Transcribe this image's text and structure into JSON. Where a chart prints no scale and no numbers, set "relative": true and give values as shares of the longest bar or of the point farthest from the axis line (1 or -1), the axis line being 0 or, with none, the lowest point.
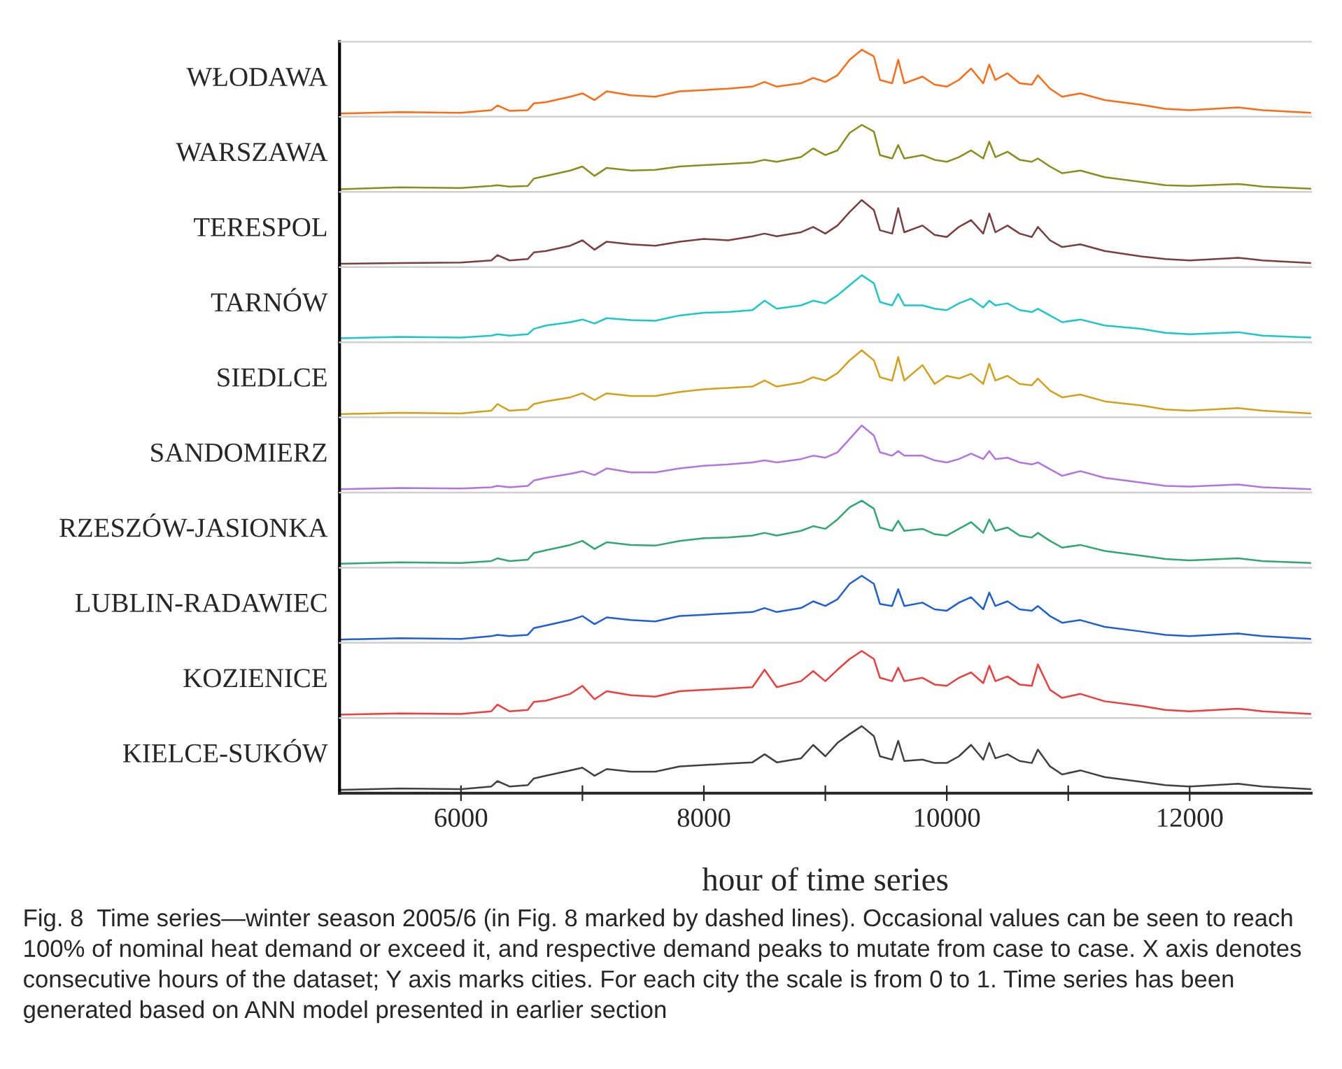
{
  "chart_data": [
    {
      "type": "line",
      "ylabel": "WŁODAWA",
      "relative": true,
      "xlim": [
        5000,
        13000
      ],
      "tick_labels": false,
      "x": [
        5000,
        5500,
        6000,
        6250,
        6300,
        6400,
        6550,
        6600,
        6700,
        6900,
        7000,
        7100,
        7200,
        7400,
        7600,
        7800,
        8000,
        8200,
        8400,
        8500,
        8600,
        8800,
        8900,
        9000,
        9100,
        9200,
        9300,
        9400,
        9450,
        9550,
        9600,
        9650,
        9800,
        9900,
        10000,
        10100,
        10200,
        10300,
        10350,
        10400,
        10500,
        10600,
        10700,
        10750,
        10850,
        10950,
        11100,
        11300,
        11600,
        11800,
        12000,
        12400,
        12600,
        13000
      ],
      "series": [
        {
          "color": "#ff6a13",
          "values": [
            0.05,
            0.07,
            0.06,
            0.1,
            0.17,
            0.09,
            0.1,
            0.2,
            0.22,
            0.3,
            0.35,
            0.25,
            0.38,
            0.32,
            0.3,
            0.38,
            0.4,
            0.42,
            0.45,
            0.52,
            0.45,
            0.5,
            0.58,
            0.52,
            0.62,
            0.85,
            1.0,
            0.9,
            0.55,
            0.5,
            0.85,
            0.5,
            0.6,
            0.48,
            0.45,
            0.55,
            0.72,
            0.5,
            0.78,
            0.55,
            0.65,
            0.5,
            0.48,
            0.62,
            0.42,
            0.3,
            0.35,
            0.25,
            0.18,
            0.12,
            0.1,
            0.14,
            0.1,
            0.06
          ]
        }
      ]
    },
    {
      "type": "line",
      "ylabel": "WARSZAWA",
      "relative": true,
      "xlim": [
        5000,
        13000
      ],
      "tick_labels": false,
      "x": [
        5000,
        5500,
        6000,
        6250,
        6300,
        6400,
        6550,
        6600,
        6700,
        6900,
        7000,
        7100,
        7200,
        7400,
        7600,
        7800,
        8000,
        8200,
        8400,
        8500,
        8600,
        8800,
        8900,
        9000,
        9100,
        9200,
        9300,
        9400,
        9450,
        9550,
        9600,
        9650,
        9800,
        9900,
        10000,
        10100,
        10200,
        10300,
        10350,
        10400,
        10500,
        10600,
        10700,
        10750,
        10850,
        10950,
        11100,
        11300,
        11600,
        11800,
        12000,
        12400,
        12600,
        13000
      ],
      "series": [
        {
          "color": "#8c8c1a",
          "values": [
            0.04,
            0.07,
            0.06,
            0.09,
            0.1,
            0.08,
            0.09,
            0.2,
            0.24,
            0.32,
            0.38,
            0.24,
            0.36,
            0.32,
            0.33,
            0.38,
            0.4,
            0.42,
            0.44,
            0.48,
            0.45,
            0.52,
            0.65,
            0.55,
            0.62,
            0.88,
            1.0,
            0.9,
            0.55,
            0.5,
            0.7,
            0.5,
            0.55,
            0.48,
            0.45,
            0.52,
            0.62,
            0.5,
            0.75,
            0.52,
            0.6,
            0.48,
            0.45,
            0.5,
            0.38,
            0.28,
            0.32,
            0.22,
            0.15,
            0.1,
            0.09,
            0.12,
            0.08,
            0.05
          ]
        }
      ]
    },
    {
      "type": "line",
      "ylabel": "TERESPOL",
      "relative": true,
      "xlim": [
        5000,
        13000
      ],
      "tick_labels": false,
      "x": [
        5000,
        5500,
        6000,
        6250,
        6300,
        6400,
        6550,
        6600,
        6700,
        6900,
        7000,
        7100,
        7200,
        7400,
        7600,
        7800,
        8000,
        8200,
        8400,
        8500,
        8600,
        8800,
        8900,
        9000,
        9100,
        9200,
        9300,
        9400,
        9450,
        9550,
        9600,
        9650,
        9800,
        9900,
        10000,
        10100,
        10200,
        10300,
        10350,
        10400,
        10500,
        10600,
        10700,
        10750,
        10850,
        10950,
        11100,
        11300,
        11600,
        11800,
        12000,
        12400,
        12600,
        13000
      ],
      "series": [
        {
          "color": "#7a3e3e",
          "values": [
            0.05,
            0.06,
            0.07,
            0.1,
            0.18,
            0.1,
            0.12,
            0.22,
            0.24,
            0.32,
            0.4,
            0.26,
            0.38,
            0.34,
            0.32,
            0.38,
            0.42,
            0.4,
            0.46,
            0.5,
            0.46,
            0.52,
            0.6,
            0.5,
            0.62,
            0.82,
            1.0,
            0.85,
            0.55,
            0.5,
            0.88,
            0.52,
            0.62,
            0.48,
            0.45,
            0.6,
            0.7,
            0.5,
            0.8,
            0.52,
            0.62,
            0.5,
            0.45,
            0.6,
            0.4,
            0.3,
            0.34,
            0.24,
            0.16,
            0.12,
            0.1,
            0.14,
            0.1,
            0.06
          ]
        }
      ]
    },
    {
      "type": "line",
      "ylabel": "TARNÓW",
      "relative": true,
      "xlim": [
        5000,
        13000
      ],
      "tick_labels": false,
      "x": [
        5000,
        5500,
        6000,
        6250,
        6300,
        6400,
        6550,
        6600,
        6700,
        6900,
        7000,
        7100,
        7200,
        7400,
        7600,
        7800,
        8000,
        8200,
        8400,
        8500,
        8600,
        8800,
        8900,
        9000,
        9100,
        9200,
        9300,
        9400,
        9450,
        9550,
        9600,
        9650,
        9800,
        9900,
        10000,
        10100,
        10200,
        10300,
        10350,
        10400,
        10500,
        10600,
        10700,
        10750,
        10850,
        10950,
        11100,
        11300,
        11600,
        11800,
        12000,
        12400,
        12600,
        13000
      ],
      "series": [
        {
          "color": "#1ac8c8",
          "values": [
            0.06,
            0.08,
            0.07,
            0.1,
            0.12,
            0.1,
            0.12,
            0.2,
            0.25,
            0.3,
            0.34,
            0.28,
            0.36,
            0.33,
            0.32,
            0.4,
            0.44,
            0.45,
            0.48,
            0.62,
            0.5,
            0.55,
            0.62,
            0.58,
            0.7,
            0.85,
            1.0,
            0.88,
            0.6,
            0.55,
            0.72,
            0.55,
            0.55,
            0.5,
            0.48,
            0.58,
            0.65,
            0.52,
            0.62,
            0.55,
            0.58,
            0.48,
            0.45,
            0.5,
            0.4,
            0.3,
            0.34,
            0.25,
            0.2,
            0.14,
            0.12,
            0.15,
            0.1,
            0.07
          ]
        }
      ]
    },
    {
      "type": "line",
      "ylabel": "SIEDLCE",
      "relative": true,
      "xlim": [
        5000,
        13000
      ],
      "tick_labels": false,
      "x": [
        5000,
        5500,
        6000,
        6250,
        6300,
        6400,
        6550,
        6600,
        6700,
        6900,
        7000,
        7100,
        7200,
        7400,
        7600,
        7800,
        8000,
        8200,
        8400,
        8500,
        8600,
        8800,
        8900,
        9000,
        9100,
        9200,
        9300,
        9400,
        9450,
        9550,
        9600,
        9650,
        9800,
        9900,
        10000,
        10100,
        10200,
        10300,
        10350,
        10400,
        10500,
        10600,
        10700,
        10750,
        10850,
        10950,
        11100,
        11300,
        11600,
        11800,
        12000,
        12400,
        12600,
        13000
      ],
      "series": [
        {
          "color": "#d4a017",
          "values": [
            0.05,
            0.07,
            0.06,
            0.1,
            0.2,
            0.1,
            0.12,
            0.2,
            0.24,
            0.3,
            0.36,
            0.26,
            0.36,
            0.32,
            0.32,
            0.38,
            0.42,
            0.44,
            0.46,
            0.55,
            0.46,
            0.52,
            0.6,
            0.55,
            0.66,
            0.85,
            1.0,
            0.85,
            0.6,
            0.55,
            0.9,
            0.55,
            0.78,
            0.5,
            0.62,
            0.58,
            0.65,
            0.5,
            0.8,
            0.55,
            0.62,
            0.5,
            0.48,
            0.58,
            0.4,
            0.3,
            0.34,
            0.24,
            0.18,
            0.12,
            0.1,
            0.14,
            0.1,
            0.06
          ]
        }
      ]
    },
    {
      "type": "line",
      "ylabel": "SANDOMIERZ",
      "relative": true,
      "xlim": [
        5000,
        13000
      ],
      "tick_labels": false,
      "x": [
        5000,
        5500,
        6000,
        6250,
        6300,
        6400,
        6550,
        6600,
        6700,
        6900,
        7000,
        7100,
        7200,
        7400,
        7600,
        7800,
        8000,
        8200,
        8400,
        8500,
        8600,
        8800,
        8900,
        9000,
        9100,
        9200,
        9300,
        9400,
        9450,
        9550,
        9600,
        9650,
        9800,
        9900,
        10000,
        10100,
        10200,
        10300,
        10350,
        10400,
        10500,
        10600,
        10700,
        10750,
        10850,
        10950,
        11100,
        11300,
        11600,
        11800,
        12000,
        12400,
        12600,
        13000
      ],
      "series": [
        {
          "color": "#b373e0",
          "values": [
            0.05,
            0.07,
            0.06,
            0.08,
            0.1,
            0.08,
            0.1,
            0.18,
            0.22,
            0.28,
            0.32,
            0.26,
            0.36,
            0.3,
            0.3,
            0.36,
            0.4,
            0.42,
            0.45,
            0.48,
            0.45,
            0.5,
            0.55,
            0.52,
            0.6,
            0.8,
            1.0,
            0.85,
            0.6,
            0.55,
            0.62,
            0.55,
            0.55,
            0.48,
            0.45,
            0.5,
            0.58,
            0.5,
            0.62,
            0.5,
            0.52,
            0.45,
            0.42,
            0.45,
            0.35,
            0.25,
            0.32,
            0.22,
            0.15,
            0.1,
            0.09,
            0.12,
            0.08,
            0.05
          ]
        }
      ]
    },
    {
      "type": "line",
      "ylabel": "RZESZÓW-JASIONKA",
      "relative": true,
      "xlim": [
        5000,
        13000
      ],
      "tick_labels": false,
      "x": [
        5000,
        5500,
        6000,
        6250,
        6300,
        6400,
        6550,
        6600,
        6700,
        6900,
        7000,
        7100,
        7200,
        7400,
        7600,
        7800,
        8000,
        8200,
        8400,
        8500,
        8600,
        8800,
        8900,
        9000,
        9100,
        9200,
        9300,
        9400,
        9450,
        9550,
        9600,
        9650,
        9800,
        9900,
        10000,
        10100,
        10200,
        10300,
        10350,
        10400,
        10500,
        10600,
        10700,
        10750,
        10850,
        10950,
        11100,
        11300,
        11600,
        11800,
        12000,
        12400,
        12600,
        13000
      ],
      "series": [
        {
          "color": "#2ea86e",
          "values": [
            0.06,
            0.08,
            0.07,
            0.1,
            0.14,
            0.1,
            0.12,
            0.22,
            0.26,
            0.34,
            0.4,
            0.28,
            0.38,
            0.34,
            0.33,
            0.4,
            0.44,
            0.45,
            0.48,
            0.52,
            0.48,
            0.55,
            0.62,
            0.58,
            0.72,
            0.9,
            1.0,
            0.88,
            0.6,
            0.55,
            0.7,
            0.55,
            0.58,
            0.5,
            0.48,
            0.58,
            0.68,
            0.52,
            0.72,
            0.55,
            0.6,
            0.48,
            0.45,
            0.52,
            0.4,
            0.3,
            0.34,
            0.25,
            0.18,
            0.13,
            0.11,
            0.14,
            0.1,
            0.07
          ]
        }
      ]
    },
    {
      "type": "line",
      "ylabel": "LUBLIN-RADAWIEC",
      "relative": true,
      "xlim": [
        5000,
        13000
      ],
      "tick_labels": false,
      "x": [
        5000,
        5500,
        6000,
        6250,
        6300,
        6400,
        6550,
        6600,
        6700,
        6900,
        7000,
        7100,
        7200,
        7400,
        7600,
        7800,
        8000,
        8200,
        8400,
        8500,
        8600,
        8800,
        8900,
        9000,
        9100,
        9200,
        9300,
        9400,
        9450,
        9550,
        9600,
        9650,
        9800,
        9900,
        10000,
        10100,
        10200,
        10300,
        10350,
        10400,
        10500,
        10600,
        10700,
        10750,
        10850,
        10950,
        11100,
        11300,
        11600,
        11800,
        12000,
        12400,
        12600,
        13000
      ],
      "series": [
        {
          "color": "#1f5fd6",
          "values": [
            0.05,
            0.07,
            0.06,
            0.1,
            0.12,
            0.1,
            0.12,
            0.22,
            0.26,
            0.34,
            0.4,
            0.28,
            0.38,
            0.34,
            0.32,
            0.4,
            0.42,
            0.44,
            0.46,
            0.52,
            0.46,
            0.52,
            0.62,
            0.55,
            0.65,
            0.88,
            1.0,
            0.88,
            0.58,
            0.55,
            0.8,
            0.55,
            0.6,
            0.5,
            0.48,
            0.6,
            0.68,
            0.5,
            0.75,
            0.55,
            0.62,
            0.5,
            0.48,
            0.55,
            0.4,
            0.3,
            0.34,
            0.24,
            0.17,
            0.12,
            0.1,
            0.14,
            0.1,
            0.06
          ]
        }
      ]
    },
    {
      "type": "line",
      "ylabel": "KOZIENICE",
      "relative": true,
      "xlim": [
        5000,
        13000
      ],
      "tick_labels": false,
      "x": [
        5000,
        5500,
        6000,
        6250,
        6300,
        6400,
        6550,
        6600,
        6700,
        6900,
        7000,
        7100,
        7200,
        7400,
        7600,
        7800,
        8000,
        8200,
        8400,
        8500,
        8600,
        8800,
        8900,
        9000,
        9100,
        9200,
        9300,
        9400,
        9450,
        9550,
        9600,
        9650,
        9800,
        9900,
        10000,
        10100,
        10200,
        10300,
        10350,
        10400,
        10500,
        10600,
        10700,
        10750,
        10850,
        10950,
        11100,
        11300,
        11600,
        11800,
        12000,
        12400,
        12600,
        13000
      ],
      "series": [
        {
          "color": "#f03c3c",
          "values": [
            0.05,
            0.07,
            0.06,
            0.1,
            0.2,
            0.1,
            0.12,
            0.24,
            0.26,
            0.36,
            0.48,
            0.28,
            0.4,
            0.34,
            0.32,
            0.4,
            0.42,
            0.44,
            0.46,
            0.72,
            0.46,
            0.55,
            0.7,
            0.55,
            0.72,
            0.88,
            1.0,
            0.88,
            0.6,
            0.55,
            0.75,
            0.55,
            0.6,
            0.5,
            0.48,
            0.6,
            0.68,
            0.52,
            0.78,
            0.55,
            0.62,
            0.5,
            0.48,
            0.8,
            0.42,
            0.3,
            0.36,
            0.25,
            0.18,
            0.12,
            0.1,
            0.14,
            0.1,
            0.06
          ]
        }
      ]
    },
    {
      "type": "line",
      "ylabel": "KIELCE-SUKÓW",
      "relative": true,
      "xlim": [
        5000,
        13000
      ],
      "tick_labels": "x",
      "xticks": [
        6000,
        {
          "value": 7000,
          "label": null
        },
        8000,
        {
          "value": 9000,
          "label": null
        },
        10000,
        {
          "value": 11000,
          "label": null
        },
        12000
      ],
      "xlabel": "hour of time series",
      "annotations": [
        "Fig. 8  Time series—winter season 2005/6 (in Fig. 8 marked by dashed lines). Occasional values can be seen to reach 100% of nominal heat demand or exceed it, and respective demand peaks to mutate from case to case. X axis denotes consecutive hours of the dataset; Y axis marks cities. For each city the scale is from 0 to 1. Time series has been generated based on ANN model presented in earlier section"
      ],
      "x": [
        5000,
        5500,
        6000,
        6250,
        6300,
        6400,
        6550,
        6600,
        6700,
        6900,
        7000,
        7100,
        7200,
        7400,
        7600,
        7800,
        8000,
        8200,
        8400,
        8500,
        8600,
        8800,
        8900,
        9000,
        9100,
        9200,
        9300,
        9400,
        9450,
        9550,
        9600,
        9650,
        9800,
        9900,
        10000,
        10100,
        10200,
        10300,
        10350,
        10400,
        10500,
        10600,
        10700,
        10750,
        10850,
        10950,
        11100,
        11300,
        11600,
        11800,
        12000,
        12400,
        12600,
        13000
      ],
      "series": [
        {
          "color": "#404040",
          "values": [
            0.05,
            0.07,
            0.06,
            0.1,
            0.18,
            0.1,
            0.12,
            0.22,
            0.26,
            0.34,
            0.38,
            0.26,
            0.36,
            0.32,
            0.32,
            0.4,
            0.42,
            0.44,
            0.46,
            0.58,
            0.46,
            0.52,
            0.72,
            0.55,
            0.75,
            0.88,
            1.0,
            0.85,
            0.55,
            0.5,
            0.78,
            0.48,
            0.5,
            0.45,
            0.45,
            0.55,
            0.72,
            0.5,
            0.75,
            0.52,
            0.58,
            0.48,
            0.45,
            0.65,
            0.4,
            0.28,
            0.34,
            0.24,
            0.17,
            0.12,
            0.1,
            0.14,
            0.1,
            0.06
          ]
        }
      ]
    }
  ]
}
